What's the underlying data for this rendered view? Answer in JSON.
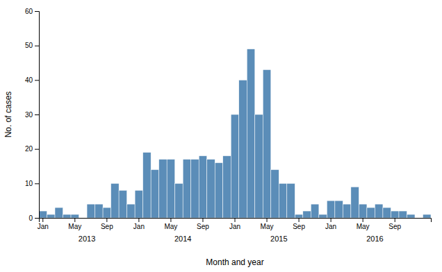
{
  "chart_data": {
    "type": "bar",
    "categories": [
      "Jan",
      null,
      null,
      null,
      "May",
      null,
      null,
      null,
      "Sep",
      null,
      null,
      null,
      "Jan",
      null,
      null,
      null,
      "May",
      null,
      null,
      null,
      "Sep",
      null,
      null,
      null,
      "Jan",
      null,
      null,
      null,
      "May",
      null,
      null,
      null,
      "Sep",
      null,
      null,
      null,
      "Jan",
      null,
      null,
      null,
      "May",
      null,
      null,
      null,
      "Sep",
      null,
      null,
      null,
      null
    ],
    "values": [
      2,
      1,
      3,
      1,
      1,
      0,
      4,
      4,
      3,
      10,
      8,
      4,
      8,
      19,
      14,
      17,
      17,
      10,
      17,
      17,
      18,
      17,
      16,
      18,
      30,
      40,
      49,
      30,
      43,
      14,
      10,
      10,
      1,
      2,
      4,
      1,
      5,
      5,
      4,
      9,
      4,
      3,
      4,
      3,
      2,
      2,
      1,
      0,
      1
    ],
    "color": "#5b8db8",
    "x_label": "Month and year",
    "y_label": "No. of cases",
    "ylim": [
      0,
      60
    ],
    "yticks": [
      0,
      10,
      20,
      30,
      40,
      50,
      60
    ],
    "annotations": [
      {
        "text": "2013",
        "x": 6
      },
      {
        "text": "2014",
        "x": 18
      },
      {
        "text": "2015",
        "x": 30
      },
      {
        "text": "2016",
        "x": 42
      }
    ],
    "grid": false
  }
}
